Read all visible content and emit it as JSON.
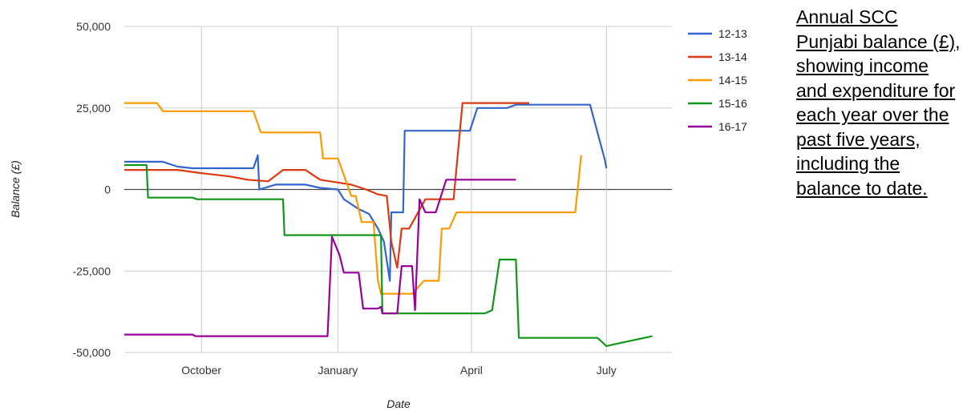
{
  "chart_data": {
    "type": "line",
    "caption": "Annual SCC Punjabi balance (£), showing income and expenditure for each year over the past five years, including the balance to date.",
    "xlabel": "Date",
    "ylabel": "Balance (£)",
    "x_ticks": [
      "October",
      "January",
      "April",
      "July"
    ],
    "y_ticks": [
      "50,000",
      "25,000",
      "0",
      "-25,000",
      "-50,000"
    ],
    "ylim": [
      -50000,
      50000
    ],
    "grid": true,
    "legend_position": "right",
    "series": [
      {
        "name": "12-13",
        "color": "#3366cc",
        "points": [
          [
            "Aug 10",
            8500
          ],
          [
            "Sep 5",
            8500
          ],
          [
            "Sep 15",
            7000
          ],
          [
            "Sep 25",
            6500
          ],
          [
            "Oct 25",
            6500
          ],
          [
            "Nov 5",
            6500
          ],
          [
            "Nov 8",
            10500
          ],
          [
            "Nov 9",
            0
          ],
          [
            "Nov 20",
            1500
          ],
          [
            "Dec 10",
            1500
          ],
          [
            "Dec 20",
            500
          ],
          [
            "Jan 1",
            0
          ],
          [
            "Jan 5",
            -3000
          ],
          [
            "Jan 15",
            -6000
          ],
          [
            "Jan 22",
            -7500
          ],
          [
            "Jan 28",
            -12000
          ],
          [
            "Feb 1",
            -16000
          ],
          [
            "Feb 5",
            -28000
          ],
          [
            "Feb 6",
            -7000
          ],
          [
            "Feb 14",
            -7000
          ],
          [
            "Feb 15",
            18000
          ],
          [
            "Mar 31",
            18000
          ],
          [
            "Apr 5",
            25000
          ],
          [
            "Apr 25",
            25000
          ],
          [
            "May 1",
            26000
          ],
          [
            "Jun 20",
            26000
          ],
          [
            "Jun 30",
            9000
          ],
          [
            "Jul 1",
            6500
          ]
        ]
      },
      {
        "name": "13-14",
        "color": "#dc3912",
        "points": [
          [
            "Aug 10",
            6000
          ],
          [
            "Sep 15",
            6000
          ],
          [
            "Oct 1",
            5000
          ],
          [
            "Oct 20",
            4000
          ],
          [
            "Nov 1",
            3000
          ],
          [
            "Nov 15",
            2500
          ],
          [
            "Nov 25",
            6000
          ],
          [
            "Dec 10",
            6000
          ],
          [
            "Dec 20",
            3000
          ],
          [
            "Jan 10",
            1500
          ],
          [
            "Jan 20",
            0
          ],
          [
            "Jan 28",
            -1500
          ],
          [
            "Feb 3",
            -2000
          ],
          [
            "Feb 6",
            -16000
          ],
          [
            "Feb 10",
            -24000
          ],
          [
            "Feb 13",
            -12000
          ],
          [
            "Feb 18",
            -12000
          ],
          [
            "Mar 1",
            -3000
          ],
          [
            "Mar 20",
            -3000
          ],
          [
            "Mar 26",
            26500
          ],
          [
            "May 10",
            26500
          ]
        ]
      },
      {
        "name": "14-15",
        "color": "#ff9900",
        "points": [
          [
            "Aug 10",
            26500
          ],
          [
            "Sep 1",
            26500
          ],
          [
            "Sep 5",
            24000
          ],
          [
            "Nov 5",
            24000
          ],
          [
            "Nov 10",
            17500
          ],
          [
            "Dec 20",
            17500
          ],
          [
            "Dec 22",
            9500
          ],
          [
            "Jan 1",
            9500
          ],
          [
            "Jan 10",
            -2000
          ],
          [
            "Jan 13",
            -2000
          ],
          [
            "Jan 17",
            -10000
          ],
          [
            "Jan 25",
            -10000
          ],
          [
            "Jan 28",
            -28000
          ],
          [
            "Jan 30",
            -32000
          ],
          [
            "Feb 20",
            -32000
          ],
          [
            "Feb 28",
            -28000
          ],
          [
            "Mar 10",
            -28000
          ],
          [
            "Mar 12",
            -12000
          ],
          [
            "Mar 17",
            -12000
          ],
          [
            "Mar 22",
            -7000
          ],
          [
            "Jun 10",
            -7000
          ],
          [
            "Jun 14",
            10500
          ]
        ]
      },
      {
        "name": "15-16",
        "color": "#109618",
        "points": [
          [
            "Aug 10",
            7500
          ],
          [
            "Aug 25",
            7500
          ],
          [
            "Aug 26",
            -2500
          ],
          [
            "Sep 25",
            -2500
          ],
          [
            "Sep 28",
            -3000
          ],
          [
            "Nov 25",
            -3000
          ],
          [
            "Nov 26",
            -14000
          ],
          [
            "Jan 30",
            -14000
          ],
          [
            "Jan 31",
            -38000
          ],
          [
            "Apr 10",
            -38000
          ],
          [
            "Apr 15",
            -37000
          ],
          [
            "Apr 20",
            -21500
          ],
          [
            "May 1",
            -21500
          ],
          [
            "May 3",
            -45500
          ],
          [
            "Jun 25",
            -45500
          ],
          [
            "Jul 1",
            -48000
          ],
          [
            "Aug 1",
            -45000
          ]
        ]
      },
      {
        "name": "16-17",
        "color": "#990099",
        "points": [
          [
            "Aug 10",
            -44500
          ],
          [
            "Sep 25",
            -44500
          ],
          [
            "Sep 27",
            -45000
          ],
          [
            "Dec 25",
            -45000
          ],
          [
            "Dec 28",
            -14500
          ],
          [
            "Jan 2",
            -20000
          ],
          [
            "Jan 5",
            -25500
          ],
          [
            "Jan 15",
            -25500
          ],
          [
            "Jan 18",
            -36500
          ],
          [
            "Jan 28",
            -36500
          ],
          [
            "Jan 30",
            -36000
          ],
          [
            "Jan 31",
            -38000
          ],
          [
            "Feb 10",
            -38000
          ],
          [
            "Feb 13",
            -23500
          ],
          [
            "Feb 20",
            -23500
          ],
          [
            "Feb 22",
            -37000
          ],
          [
            "Feb 25",
            -3000
          ],
          [
            "Mar 1",
            -7000
          ],
          [
            "Mar 8",
            -7000
          ],
          [
            "Mar 15",
            3000
          ],
          [
            "May 1",
            3000
          ]
        ]
      }
    ]
  }
}
